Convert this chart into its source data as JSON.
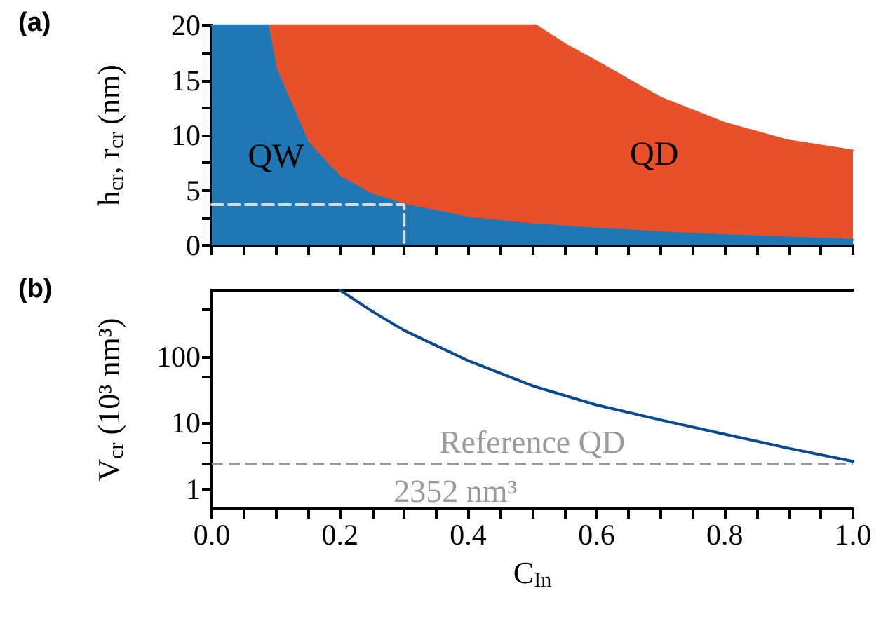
{
  "chart_data": [
    {
      "type": "area",
      "title": "(a)",
      "ylabel": "h$_{cr}$, r$_{cr}$ (nm)",
      "xlim": [
        0,
        1
      ],
      "ylim": [
        0,
        20
      ],
      "xticks": [
        0,
        {
          "value": 0.05,
          "label": null
        },
        {
          "value": 0.1,
          "label": null
        },
        {
          "value": 0.15,
          "label": null
        },
        {
          "value": 0.2,
          "label": null
        },
        {
          "value": 0.25,
          "label": null
        },
        {
          "value": 0.3,
          "label": null
        },
        {
          "value": 0.35,
          "label": null
        },
        {
          "value": 0.4,
          "label": null
        },
        {
          "value": 0.45,
          "label": null
        },
        {
          "value": 0.5,
          "label": null
        },
        {
          "value": 0.55,
          "label": null
        },
        {
          "value": 0.6,
          "label": null
        },
        {
          "value": 0.65,
          "label": null
        },
        {
          "value": 0.7,
          "label": null
        },
        {
          "value": 0.75,
          "label": null
        },
        {
          "value": 0.8,
          "label": null
        },
        {
          "value": 0.85,
          "label": null
        },
        {
          "value": 0.9,
          "label": null
        },
        {
          "value": 0.95,
          "label": null
        },
        {
          "value": 1,
          "label": null
        }
      ],
      "yticks": [
        0,
        {
          "value": 2.5,
          "label": null
        },
        5,
        {
          "value": 7.5,
          "label": null
        },
        10,
        {
          "value": 12.5,
          "label": null
        },
        15,
        {
          "value": 17.5,
          "label": null
        },
        20
      ],
      "tick_labels": "y",
      "marker": "none",
      "grid": false,
      "series": [
        {
          "color": "#e8502a",
          "x": [
            0.087,
            0.3,
            0.505,
            0.55,
            0.6,
            0.7,
            0.8,
            0.9,
            1.0
          ],
          "values": [
            20,
            20,
            20,
            18.3,
            16.7,
            13.4,
            11.1,
            9.5,
            8.6
          ]
        },
        {
          "color": "#1f77b4",
          "x": [
            0,
            0.087,
            0.1,
            0.15,
            0.2,
            0.25,
            0.3,
            0.4,
            0.5,
            0.6,
            0.7,
            0.8,
            0.9,
            1.0
          ],
          "values": [
            20,
            20,
            16,
            9.3,
            6.2,
            4.6,
            3.7,
            2.5,
            1.9,
            1.5,
            1.2,
            0.9,
            0.7,
            0.5
          ]
        },
        {
          "type": "line",
          "line_style": "dashed",
          "color": "#d9d9d9",
          "x": [
            0,
            0.3,
            0.3
          ],
          "values": [
            3.7,
            3.7,
            0
          ]
        }
      ],
      "annotations": [
        "QW",
        "QD"
      ]
    },
    {
      "type": "line",
      "title": "(b)",
      "xlabel": "C$_{In}$",
      "ylabel": "V$_{cr}$ (10³ nm³)",
      "log": true,
      "xlim": [
        0,
        1
      ],
      "ylim": [
        0.5,
        1000
      ],
      "xticks": [
        {
          "value": 0,
          "label": "0.0"
        },
        {
          "value": 0.05,
          "label": null
        },
        {
          "value": 0.1,
          "label": null
        },
        {
          "value": 0.15,
          "label": null
        },
        0.2,
        {
          "value": 0.25,
          "label": null
        },
        {
          "value": 0.3,
          "label": null
        },
        {
          "value": 0.35,
          "label": null
        },
        0.4,
        {
          "value": 0.45,
          "label": null
        },
        {
          "value": 0.5,
          "label": null
        },
        {
          "value": 0.55,
          "label": null
        },
        0.6,
        {
          "value": 0.65,
          "label": null
        },
        {
          "value": 0.7,
          "label": null
        },
        {
          "value": 0.75,
          "label": null
        },
        0.8,
        {
          "value": 0.85,
          "label": null
        },
        {
          "value": 0.9,
          "label": null
        },
        {
          "value": 0.95,
          "label": null
        },
        {
          "value": 1,
          "label": "1.0"
        }
      ],
      "yticks": [
        1,
        {
          "value": 2.352,
          "label": null
        },
        {
          "value": 5,
          "label": null
        },
        10,
        {
          "value": 50,
          "label": null
        },
        100,
        {
          "value": 500,
          "label": null
        }
      ],
      "marker": "none",
      "grid": false,
      "series": [
        {
          "color": "#0b4a8f",
          "x": [
            0.2,
            0.25,
            0.3,
            0.4,
            0.5,
            0.6,
            0.7,
            0.8,
            0.9,
            1.0
          ],
          "values": [
            1000,
            480,
            247,
            86,
            36,
            18.5,
            11,
            6.7,
            4.1,
            2.6
          ]
        }
      ],
      "ref_lines": [
        {
          "axis": "y",
          "value": 2.352,
          "label": "Reference QD",
          "color": "#999999",
          "line_style": "dashed"
        }
      ],
      "annotations": [
        "2352 nm³"
      ]
    }
  ]
}
